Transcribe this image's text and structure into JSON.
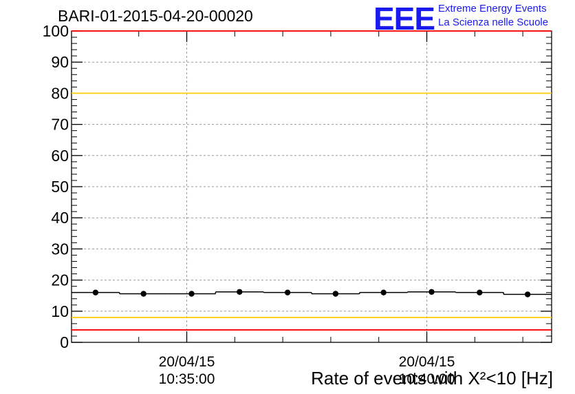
{
  "header": {
    "title": "BARI-01-2015-04-20-00020",
    "logo_text": "EEE",
    "logo_line1": "Extreme Energy Events",
    "logo_line2": "La Scienza nelle Scuole"
  },
  "chart_data": {
    "type": "scatter",
    "title": "BARI-01-2015-04-20-00020",
    "xlabel": "Rate of events with X²<10 [Hz]",
    "ylabel": "",
    "x_unit": "time",
    "x_range": [
      "10:32:36",
      "10:42:36"
    ],
    "ylim": [
      0,
      100
    ],
    "y_ticks": [
      0,
      10,
      20,
      30,
      40,
      50,
      60,
      70,
      80,
      90,
      100
    ],
    "x_ticks": [
      {
        "time": "10:35:00",
        "date_label": "20/04/15",
        "time_label": "10:35:00"
      },
      {
        "time": "10:40:00",
        "date_label": "20/04/15",
        "time_label": "10:40:00"
      }
    ],
    "grid": true,
    "points": [
      {
        "x": "10:33:06",
        "y": 16.0
      },
      {
        "x": "10:34:06",
        "y": 15.6
      },
      {
        "x": "10:35:06",
        "y": 15.6
      },
      {
        "x": "10:36:06",
        "y": 16.2
      },
      {
        "x": "10:37:06",
        "y": 16.0
      },
      {
        "x": "10:38:06",
        "y": 15.6
      },
      {
        "x": "10:39:06",
        "y": 16.0
      },
      {
        "x": "10:40:06",
        "y": 16.2
      },
      {
        "x": "10:41:06",
        "y": 16.0
      },
      {
        "x": "10:42:06",
        "y": 15.4
      }
    ],
    "reference_lines": [
      {
        "y": 100,
        "color": "#ff0000"
      },
      {
        "y": 80,
        "color": "#ffcc00"
      },
      {
        "y": 8,
        "color": "#ffcc00"
      },
      {
        "y": 4,
        "color": "#ff0000"
      }
    ],
    "colors": {
      "marker": "#000000",
      "grid": "#999999",
      "logo": "#1a1aee"
    }
  }
}
